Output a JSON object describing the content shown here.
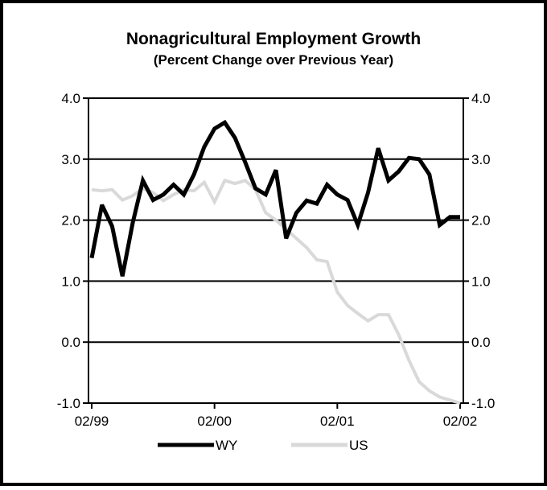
{
  "chart_data": {
    "type": "line",
    "title": "Nonagricultural Employment Growth",
    "subtitle": "(Percent Change over Previous Year)",
    "xlabel": "",
    "ylabel": "",
    "ylim": [
      -1.0,
      4.0
    ],
    "yticks": [
      "4.0",
      "3.0",
      "2.0",
      "1.0",
      "0.0",
      "-1.0"
    ],
    "ytick_values": [
      4.0,
      3.0,
      2.0,
      1.0,
      0.0,
      -1.0
    ],
    "xtick_labels": [
      "02/99",
      "02/00",
      "02/01",
      "02/02"
    ],
    "xtick_months": [
      0,
      12,
      24,
      36
    ],
    "x_start": "02/1999",
    "x_end": "02/2002",
    "grid": true,
    "legend_position": "bottom",
    "series": [
      {
        "name": "WY",
        "color": "#000000",
        "values": [
          1.38,
          2.25,
          1.9,
          1.08,
          1.95,
          2.65,
          2.33,
          2.42,
          2.58,
          2.42,
          2.75,
          3.2,
          3.5,
          3.6,
          3.35,
          2.95,
          2.52,
          2.42,
          2.82,
          1.7,
          2.12,
          2.32,
          2.27,
          2.58,
          2.42,
          2.33,
          1.92,
          2.45,
          3.18,
          2.65,
          2.8,
          3.02,
          3.0,
          2.75,
          1.92,
          2.05,
          2.05
        ]
      },
      {
        "name": "US",
        "color": "#d9d9d9",
        "values": [
          2.5,
          2.48,
          2.5,
          2.33,
          2.4,
          2.52,
          2.45,
          2.32,
          2.42,
          2.5,
          2.48,
          2.62,
          2.3,
          2.65,
          2.6,
          2.65,
          2.5,
          2.12,
          2.0,
          1.85,
          1.7,
          1.55,
          1.35,
          1.32,
          0.82,
          0.6,
          0.47,
          0.35,
          0.45,
          0.45,
          0.12,
          -0.3,
          -0.65,
          -0.8,
          -0.9,
          -0.95,
          -1.0
        ]
      }
    ]
  }
}
